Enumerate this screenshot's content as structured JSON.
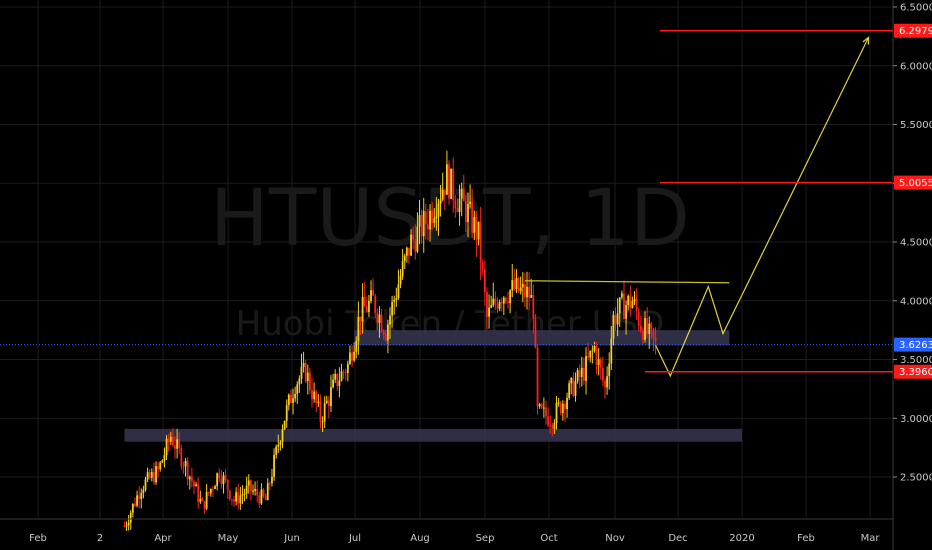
{
  "chart_data": {
    "type": "candlestick",
    "watermark": {
      "symbol": "HTUSDT, 1D",
      "name": "Huobi Token / Tether USD"
    },
    "x_ticks": [
      "Feb",
      "2",
      "Apr",
      "May",
      "Jun",
      "Jul",
      "Aug",
      "Sep",
      "Oct",
      "Nov",
      "Dec",
      "2020",
      "Feb",
      "Mar"
    ],
    "y_ticks": [
      "6.5000",
      "6.0000",
      "5.5000",
      "5.0000",
      "4.5000",
      "4.0000",
      "3.5000",
      "3.0000",
      "2.5000"
    ],
    "ylim": [
      2.05,
      6.55
    ],
    "current_price": {
      "value": 3.6263,
      "label": "3.6263",
      "color": "#2962ff"
    },
    "levels": [
      {
        "value": 6.2979,
        "label": "6.2979",
        "color": "#ff1a1a"
      },
      {
        "value": 5.0055,
        "label": "5.0055",
        "color": "#ff1a1a"
      },
      {
        "value": 3.396,
        "label": "3.3960",
        "color": "#ff1a1a"
      }
    ],
    "zones": [
      {
        "top": 3.75,
        "bottom": 3.62,
        "start": "2019-07-01",
        "end": "2019-12-26"
      },
      {
        "top": 2.91,
        "bottom": 2.8,
        "start": "2019-03-14",
        "end": "2020-01-01"
      }
    ],
    "resistance_line": {
      "start": "2019-09-20",
      "end": "2019-12-26",
      "value": 4.17
    },
    "projection": [
      [
        "2019-11-21",
        3.62
      ],
      [
        "2019-11-28",
        3.36
      ],
      [
        "2019-12-16",
        4.12
      ],
      [
        "2019-12-23",
        3.72
      ],
      [
        "2020-03-01",
        6.24
      ]
    ],
    "colors": {
      "up": "#f5d020",
      "down": "#ff2020",
      "grid": "#1c1c1c",
      "zone": "#363650",
      "projection": "#e0d040",
      "resistance": "#c8c020"
    },
    "price_path": [
      [
        "2019-03-14",
        2.08
      ],
      [
        "2019-03-22",
        2.42
      ],
      [
        "2019-03-30",
        2.55
      ],
      [
        "2019-04-05",
        2.85
      ],
      [
        "2019-04-12",
        2.6
      ],
      [
        "2019-04-20",
        2.25
      ],
      [
        "2019-04-28",
        2.55
      ],
      [
        "2019-05-05",
        2.3
      ],
      [
        "2019-05-12",
        2.4
      ],
      [
        "2019-05-20",
        2.3
      ],
      [
        "2019-05-28",
        2.95
      ],
      [
        "2019-06-03",
        3.3
      ],
      [
        "2019-06-08",
        3.4
      ],
      [
        "2019-06-15",
        3.0
      ],
      [
        "2019-06-22",
        3.3
      ],
      [
        "2019-06-28",
        3.45
      ],
      [
        "2019-07-04",
        3.9
      ],
      [
        "2019-07-10",
        4.0
      ],
      [
        "2019-07-16",
        3.75
      ],
      [
        "2019-07-22",
        4.15
      ],
      [
        "2019-07-28",
        4.5
      ],
      [
        "2019-08-05",
        4.7
      ],
      [
        "2019-08-10",
        4.9
      ],
      [
        "2019-08-14",
        5.05
      ],
      [
        "2019-08-18",
        4.9
      ],
      [
        "2019-08-24",
        4.75
      ],
      [
        "2019-08-29",
        4.55
      ],
      [
        "2019-09-02",
        3.85
      ],
      [
        "2019-09-08",
        4.05
      ],
      [
        "2019-09-15",
        4.1
      ],
      [
        "2019-09-22",
        4.05
      ],
      [
        "2019-09-24",
        3.95
      ],
      [
        "2019-09-26",
        3.05
      ],
      [
        "2019-10-03",
        3.0
      ],
      [
        "2019-10-10",
        3.2
      ],
      [
        "2019-10-18",
        3.4
      ],
      [
        "2019-10-23",
        3.6
      ],
      [
        "2019-10-28",
        3.25
      ],
      [
        "2019-11-01",
        3.85
      ],
      [
        "2019-11-05",
        3.95
      ],
      [
        "2019-11-10",
        4.0
      ],
      [
        "2019-11-14",
        3.8
      ],
      [
        "2019-11-21",
        3.62
      ]
    ]
  }
}
